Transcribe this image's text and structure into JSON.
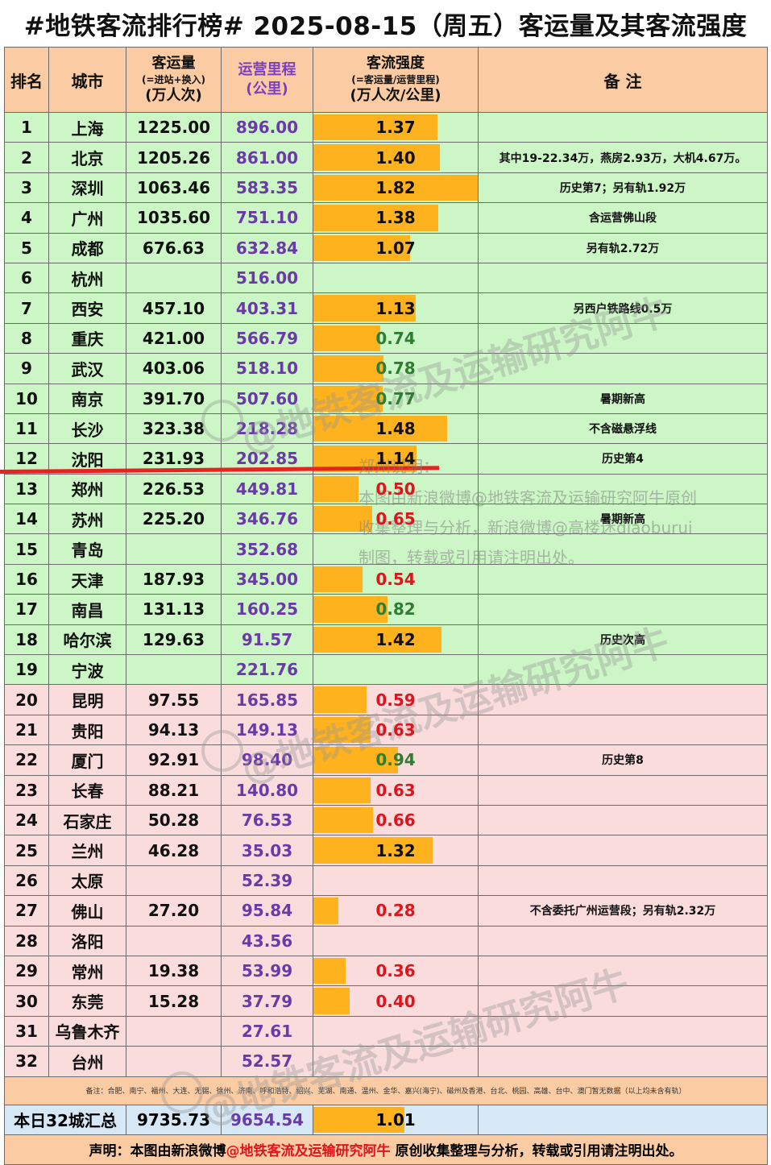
{
  "title": "#地铁客流排行榜# 2025-08-15（周五）客运量及其客流强度",
  "headers": {
    "rank": "排名",
    "city": "城市",
    "ridership_main": "客运量",
    "ridership_sub": "(=进站+换入)",
    "ridership_unit": "(万人次)",
    "distance_main": "运营里程",
    "distance_unit": "(公里)",
    "intensity_main": "客流强度",
    "intensity_sub": "(=客运量/运营里程)",
    "intensity_unit": "(万人次/公里)",
    "note": "备 注"
  },
  "rows": [
    {
      "rank": "1",
      "city": "上海",
      "ridership": "1225.00",
      "distance": "896.00",
      "intensity": "1.37",
      "note": ""
    },
    {
      "rank": "2",
      "city": "北京",
      "ridership": "1205.26",
      "distance": "861.00",
      "intensity": "1.40",
      "note": "其中19-22.34万，燕房2.93万，大机4.67万。"
    },
    {
      "rank": "3",
      "city": "深圳",
      "ridership": "1063.46",
      "distance": "583.35",
      "intensity": "1.82",
      "note": "历史第7；另有轨1.92万"
    },
    {
      "rank": "4",
      "city": "广州",
      "ridership": "1035.60",
      "distance": "751.10",
      "intensity": "1.38",
      "note": "含运营佛山段"
    },
    {
      "rank": "5",
      "city": "成都",
      "ridership": "676.63",
      "distance": "632.84",
      "intensity": "1.07",
      "note": "另有轨2.72万"
    },
    {
      "rank": "6",
      "city": "杭州",
      "ridership": "",
      "distance": "516.00",
      "intensity": "",
      "note": ""
    },
    {
      "rank": "7",
      "city": "西安",
      "ridership": "457.10",
      "distance": "403.31",
      "intensity": "1.13",
      "note": "另西户铁路线0.5万"
    },
    {
      "rank": "8",
      "city": "重庆",
      "ridership": "421.00",
      "distance": "566.79",
      "intensity": "0.74",
      "note": ""
    },
    {
      "rank": "9",
      "city": "武汉",
      "ridership": "403.06",
      "distance": "518.10",
      "intensity": "0.78",
      "note": ""
    },
    {
      "rank": "10",
      "city": "南京",
      "ridership": "391.70",
      "distance": "507.60",
      "intensity": "0.77",
      "note": "暑期新高"
    },
    {
      "rank": "11",
      "city": "长沙",
      "ridership": "323.38",
      "distance": "218.28",
      "intensity": "1.48",
      "note": "不含磁悬浮线"
    },
    {
      "rank": "12",
      "city": "沈阳",
      "ridership": "231.93",
      "distance": "202.85",
      "intensity": "1.14",
      "note": "历史第4"
    },
    {
      "rank": "13",
      "city": "郑州",
      "ridership": "226.53",
      "distance": "449.81",
      "intensity": "0.50",
      "note": ""
    },
    {
      "rank": "14",
      "city": "苏州",
      "ridership": "225.20",
      "distance": "346.76",
      "intensity": "0.65",
      "note": "暑期新高"
    },
    {
      "rank": "15",
      "city": "青岛",
      "ridership": "",
      "distance": "352.68",
      "intensity": "",
      "note": ""
    },
    {
      "rank": "16",
      "city": "天津",
      "ridership": "187.93",
      "distance": "345.00",
      "intensity": "0.54",
      "note": ""
    },
    {
      "rank": "17",
      "city": "南昌",
      "ridership": "131.13",
      "distance": "160.25",
      "intensity": "0.82",
      "note": ""
    },
    {
      "rank": "18",
      "city": "哈尔滨",
      "ridership": "129.63",
      "distance": "91.57",
      "intensity": "1.42",
      "note": "历史次高"
    },
    {
      "rank": "19",
      "city": "宁波",
      "ridership": "",
      "distance": "221.76",
      "intensity": "",
      "note": ""
    },
    {
      "rank": "20",
      "city": "昆明",
      "ridership": "97.55",
      "distance": "165.85",
      "intensity": "0.59",
      "note": ""
    },
    {
      "rank": "21",
      "city": "贵阳",
      "ridership": "94.13",
      "distance": "149.13",
      "intensity": "0.63",
      "note": ""
    },
    {
      "rank": "22",
      "city": "厦门",
      "ridership": "92.91",
      "distance": "98.40",
      "intensity": "0.94",
      "note": "历史第8"
    },
    {
      "rank": "23",
      "city": "长春",
      "ridership": "88.21",
      "distance": "140.80",
      "intensity": "0.63",
      "note": ""
    },
    {
      "rank": "24",
      "city": "石家庄",
      "ridership": "50.28",
      "distance": "76.53",
      "intensity": "0.66",
      "note": ""
    },
    {
      "rank": "25",
      "city": "兰州",
      "ridership": "46.28",
      "distance": "35.03",
      "intensity": "1.32",
      "note": ""
    },
    {
      "rank": "26",
      "city": "太原",
      "ridership": "",
      "distance": "52.39",
      "intensity": "",
      "note": ""
    },
    {
      "rank": "27",
      "city": "佛山",
      "ridership": "27.20",
      "distance": "95.84",
      "intensity": "0.28",
      "note": "不含委托广州运营段；另有轨2.32万"
    },
    {
      "rank": "28",
      "city": "洛阳",
      "ridership": "",
      "distance": "43.56",
      "intensity": "",
      "note": ""
    },
    {
      "rank": "29",
      "city": "常州",
      "ridership": "19.38",
      "distance": "53.99",
      "intensity": "0.36",
      "note": ""
    },
    {
      "rank": "30",
      "city": "东莞",
      "ridership": "15.28",
      "distance": "37.79",
      "intensity": "0.40",
      "note": ""
    },
    {
      "rank": "31",
      "city": "乌鲁木齐",
      "ridership": "",
      "distance": "27.61",
      "intensity": "",
      "note": ""
    },
    {
      "rank": "32",
      "city": "台州",
      "ridership": "",
      "distance": "52.57",
      "intensity": "",
      "note": ""
    }
  ],
  "footnote": "备注：合肥、南宁、福州、大连、无锡、徐州、济南、呼和浩特、绍兴、芜湖、南通、温州、金华、嘉兴(海宁)、磁州及香港、台北、桃园、高雄、台中、澳门暂无数据（以上均未含有轨）",
  "summary": {
    "label": "本日32城汇总",
    "ridership": "9735.73",
    "distance": "9654.54",
    "intensity": "1.01"
  },
  "declaration": {
    "prefix": "声明：本图由新浪微博",
    "account": "@地铁客流及运输研究阿牛",
    "suffix": " 原创收集整理与分析，转载或引用请注明出处。"
  },
  "watermark": {
    "text": "@地铁客流及运输研究阿牛",
    "overlay_lines": [
      "郑州说明：",
      "本图由新浪微博@地铁客流及运输研究阿牛原创",
      "收集整理与分析，新浪微博@高楼迷diaoburui",
      "制图，转载或引用请注明出处。"
    ]
  },
  "colors": {
    "header_bg": "#fbcca3",
    "green_row": "#ccf6c6",
    "pink_row": "#fbdcdc",
    "bar": "#fdb21e",
    "summary_bg": "#d6e8f6",
    "high": "#111111",
    "mid": "#2e7d32",
    "low": "#e0141c",
    "distance_text": "#6a3aa8"
  }
}
